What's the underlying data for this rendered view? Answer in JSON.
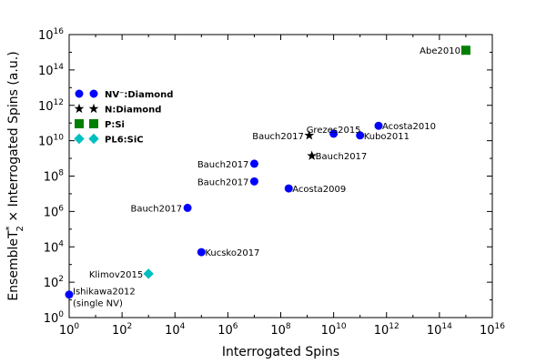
{
  "chart_data": {
    "type": "scatter",
    "xlabel": "Interrogated Spins",
    "ylabel": {
      "prefix": "Ensemble",
      "symbol": "T",
      "superscript": "*",
      "subscript": "2",
      "suffix": " × Interrogated Spins (a.u.)"
    },
    "x_scale": "log",
    "y_scale": "log",
    "xlim": [
      1,
      1e+16
    ],
    "ylim": [
      1,
      1e+16
    ],
    "grid": false,
    "legend_position": "upper-left",
    "x_ticks": [
      {
        "base": "10",
        "exp": "0"
      },
      {
        "base": "10",
        "exp": "2"
      },
      {
        "base": "10",
        "exp": "4"
      },
      {
        "base": "10",
        "exp": "6"
      },
      {
        "base": "10",
        "exp": "8"
      },
      {
        "base": "10",
        "exp": "10"
      },
      {
        "base": "10",
        "exp": "12"
      },
      {
        "base": "10",
        "exp": "14"
      },
      {
        "base": "10",
        "exp": "16"
      }
    ],
    "y_ticks": [
      {
        "base": "10",
        "exp": "0"
      },
      {
        "base": "10",
        "exp": "2"
      },
      {
        "base": "10",
        "exp": "4"
      },
      {
        "base": "10",
        "exp": "6"
      },
      {
        "base": "10",
        "exp": "8"
      },
      {
        "base": "10",
        "exp": "10"
      },
      {
        "base": "10",
        "exp": "12"
      },
      {
        "base": "10",
        "exp": "14"
      },
      {
        "base": "10",
        "exp": "16"
      }
    ],
    "series": [
      {
        "name": "NV⁻:Diamond",
        "marker": "circle",
        "color": "#0000ff",
        "points": [
          {
            "x": 1,
            "y": 20,
            "label": "Ishikawa2012",
            "label2": "(single NV)",
            "label_side": "right"
          },
          {
            "x": 100000.0,
            "y": 5000.0,
            "label": "Kucsko2017",
            "label_side": "right"
          },
          {
            "x": 30000.0,
            "y": 1600000.0,
            "label": "Bauch2017",
            "label_side": "left"
          },
          {
            "x": 10000000.0,
            "y": 50000000.0,
            "label": "Bauch2017",
            "label_side": "left"
          },
          {
            "x": 10000000.0,
            "y": 500000000.0,
            "label": "Bauch2017",
            "label_side": "left"
          },
          {
            "x": 200000000.0,
            "y": 20000000.0,
            "label": "Acosta2009",
            "label_side": "right"
          },
          {
            "x": 10000000000.0,
            "y": 25000000000.0,
            "label": "Grezes2015",
            "label_side": "above"
          },
          {
            "x": 100000000000.0,
            "y": 20000000000.0,
            "label": "Kubo2011",
            "label_side": "right"
          },
          {
            "x": 500000000000.0,
            "y": 70000000000.0,
            "label": "Acosta2010",
            "label_side": "right"
          }
        ]
      },
      {
        "name": "N:Diamond",
        "marker": "star",
        "color": "#000000",
        "points": [
          {
            "x": 1200000000.0,
            "y": 20000000000.0,
            "label": "Bauch2017",
            "label_side": "left"
          },
          {
            "x": 1500000000.0,
            "y": 1400000000.0,
            "label": "Bauch2017",
            "label_side": "right"
          }
        ]
      },
      {
        "name": "P:Si",
        "marker": "square",
        "color": "#008000",
        "points": [
          {
            "x": 1000000000000000.0,
            "y": 1300000000000000.0,
            "label": "Abe2010",
            "label_side": "left"
          }
        ]
      },
      {
        "name": "PL6:SiC",
        "marker": "diamond",
        "color": "#00bfbf",
        "points": [
          {
            "x": 1000.0,
            "y": 300,
            "label": "Klimov2015",
            "label_side": "left"
          }
        ]
      }
    ]
  }
}
